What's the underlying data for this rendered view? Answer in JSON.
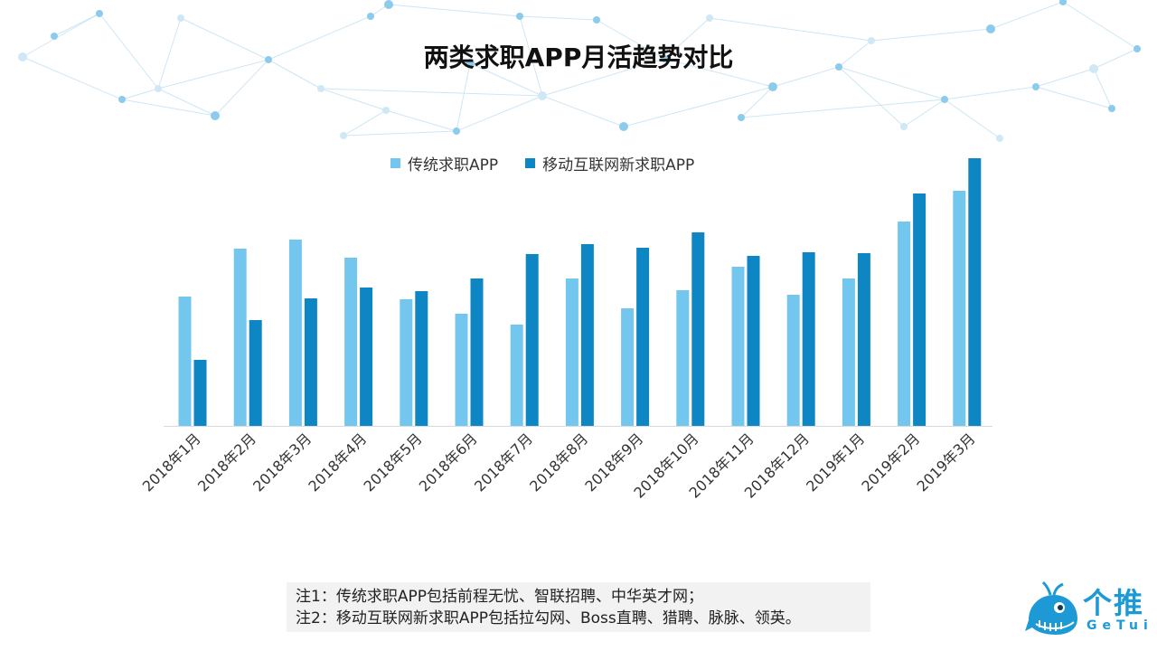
{
  "colors": {
    "series1": "#73c7ef",
    "series2": "#0f86c4",
    "network": "#b9dcf0",
    "logo": "#1d9ad6"
  },
  "chart_data": {
    "type": "bar",
    "title": "两类求职APP月活趋势对比",
    "categories": [
      "2018年1月",
      "2018年2月",
      "2018年3月",
      "2018年4月",
      "2018年5月",
      "2018年6月",
      "2018年7月",
      "2018年8月",
      "2018年9月",
      "2018年10月",
      "2018年11月",
      "2018年12月",
      "2019年1月",
      "2019年2月",
      "2019年3月"
    ],
    "series": [
      {
        "name": "传统求职APP",
        "values": [
          143,
          196,
          206,
          186,
          140,
          124,
          112,
          163,
          130,
          150,
          176,
          145,
          163,
          226,
          260
        ]
      },
      {
        "name": "移动互联网新求职APP",
        "values": [
          73,
          117,
          141,
          153,
          149,
          163,
          190,
          201,
          197,
          214,
          188,
          192,
          191,
          257,
          296
        ]
      }
    ],
    "xlabel": "",
    "ylabel": "",
    "yaxis_visible": false,
    "grid": false,
    "legend": "top-center"
  },
  "notes": {
    "line1": "注1：传统求职APP包括前程无忧、智联招聘、中华英才网；",
    "line2": "注2：移动互联网新求职APP包括拉勾网、Boss直聘、猎聘、脉脉、领英。"
  },
  "logo": {
    "cn": "个推",
    "en": "GeTui"
  }
}
